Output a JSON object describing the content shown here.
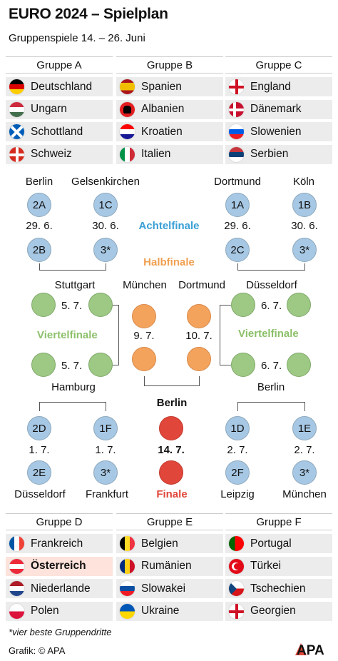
{
  "header": {
    "title": "EURO 2024 – Spielplan",
    "subtitle": "Gruppenspiele 14. – 26. Juni"
  },
  "groups": [
    {
      "name": "Gruppe A",
      "teams": [
        "Deutschland",
        "Ungarn",
        "Schottland",
        "Schweiz"
      ]
    },
    {
      "name": "Gruppe B",
      "teams": [
        "Spanien",
        "Albanien",
        "Kroatien",
        "Italien"
      ]
    },
    {
      "name": "Gruppe C",
      "teams": [
        "England",
        "Dänemark",
        "Slowenien",
        "Serbien"
      ]
    },
    {
      "name": "Gruppe D",
      "teams": [
        "Frankreich",
        "Österreich",
        "Niederlande",
        "Polen"
      ]
    },
    {
      "name": "Gruppe E",
      "teams": [
        "Belgien",
        "Rumänien",
        "Slowakei",
        "Ukraine"
      ]
    },
    {
      "name": "Gruppe F",
      "teams": [
        "Portugal",
        "Türkei",
        "Tschechien",
        "Georgien"
      ]
    }
  ],
  "bracket": {
    "stages": {
      "r16": "Achtelfinale",
      "sf": "Halbfinale",
      "qf": "Viertelfinale",
      "final": "Finale"
    },
    "colors": {
      "r16": "#3a9fd6",
      "sf": "#f0a050",
      "qf": "#8cc06a",
      "final": "#e0473a"
    },
    "top": {
      "cities": [
        "Berlin",
        "Gelsenkirchen",
        "Dortmund",
        "Köln"
      ],
      "seeds_upper": [
        "2A",
        "1C",
        "1A",
        "1B"
      ],
      "dates": [
        "29. 6.",
        "30. 6.",
        "29. 6.",
        "30. 6."
      ],
      "seeds_lower": [
        "2B",
        "3*",
        "2C",
        "3*"
      ]
    },
    "qf": {
      "cities": [
        "Stuttgart",
        "Düsseldorf",
        "Hamburg",
        "Berlin"
      ],
      "dates": [
        "5. 7.",
        "5. 7.",
        "6. 7.",
        "6. 7."
      ]
    },
    "sf": {
      "cities": [
        "München",
        "Dortmund"
      ],
      "dates": [
        "9. 7.",
        "10. 7."
      ]
    },
    "final": {
      "city": "Berlin",
      "date": "14. 7."
    },
    "bottom": {
      "seeds_upper": [
        "2D",
        "1F",
        "1D",
        "1E"
      ],
      "dates": [
        "1. 7.",
        "1. 7.",
        "2. 7.",
        "2. 7."
      ],
      "seeds_lower": [
        "2E",
        "3*",
        "2F",
        "3*"
      ],
      "cities": [
        "Düsseldorf",
        "Frankfurt",
        "Leipzig",
        "München"
      ]
    }
  },
  "footnote": "*vier beste Gruppendritte",
  "credit": "Grafik: © APA",
  "logo": "APA"
}
